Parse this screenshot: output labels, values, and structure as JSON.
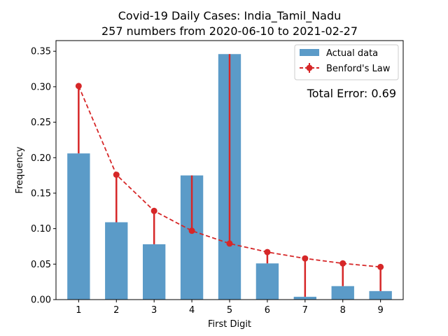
{
  "chart_data": {
    "type": "bar",
    "title": "Covid-19 Daily Cases: India_Tamil_Nadu",
    "subtitle": "257 numbers from 2020-06-10 to 2021-02-27",
    "xlabel": "First Digit",
    "ylabel": "Frequency",
    "categories": [
      "1",
      "2",
      "3",
      "4",
      "5",
      "6",
      "7",
      "8",
      "9"
    ],
    "x": [
      1,
      2,
      3,
      4,
      5,
      6,
      7,
      8,
      9
    ],
    "ylim": [
      0,
      0.35
    ],
    "yticks": [
      "0.00",
      "0.05",
      "0.10",
      "0.15",
      "0.20",
      "0.25",
      "0.30",
      "0.35"
    ],
    "grid": false,
    "legend_position": "top-right",
    "series": [
      {
        "name": "Actual data",
        "type": "bar",
        "color": "#5b9bc8",
        "values": [
          0.206,
          0.109,
          0.078,
          0.175,
          0.346,
          0.051,
          0.004,
          0.019,
          0.012
        ]
      },
      {
        "name": "Benford's Law",
        "type": "line",
        "style": "dashed",
        "marker": "circle",
        "color": "#d62728",
        "values": [
          0.301,
          0.176,
          0.125,
          0.097,
          0.079,
          0.067,
          0.058,
          0.051,
          0.046
        ]
      }
    ],
    "annotation": {
      "text": "Total Error: 0.69",
      "color": "#d62728"
    }
  }
}
